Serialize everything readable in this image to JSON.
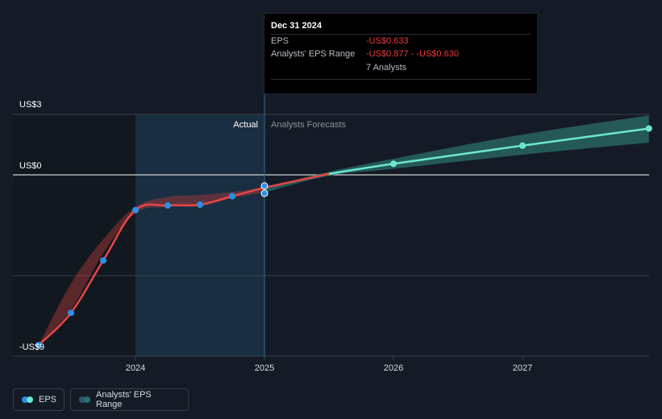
{
  "chart_data": {
    "type": "line",
    "title": "",
    "xlabel": "",
    "ylabel": "",
    "y_tick_labels": {
      "top": "US$3",
      "zero": "US$0",
      "bottom": "-US$9"
    },
    "x_ticks": [
      2024,
      2025,
      2026,
      2027
    ],
    "xlim": [
      2023.12,
      2027.98
    ],
    "ylim": [
      -9.6,
      3.0
    ],
    "divider_year": 2025.0,
    "highlight_start_year": 2024.0,
    "region_labels": {
      "actual": "Actual",
      "forecast": "Analysts Forecasts"
    },
    "series": [
      {
        "name": "EPS",
        "kind": "actual",
        "color": "#e84545",
        "x": [
          2023.25,
          2023.5,
          2023.75,
          2024.0,
          2024.25,
          2024.5,
          2024.75,
          2025.0
        ],
        "values": [
          -8.45,
          -6.85,
          -4.25,
          -1.75,
          -1.52,
          -1.48,
          -1.06,
          -0.633
        ]
      },
      {
        "name": "EPS",
        "kind": "forecast",
        "color": "#6ee6cf",
        "x": [
          2025.0,
          2025.5,
          2026.0,
          2027.0,
          2027.98
        ],
        "values": [
          -0.633,
          0.05,
          0.55,
          1.45,
          2.3
        ],
        "markers": [
          false,
          false,
          true,
          true,
          true
        ]
      },
      {
        "name": "Analysts' EPS Range",
        "kind": "range",
        "x": [
          2025.0,
          2025.5,
          2026.0,
          2027.0,
          2027.98
        ],
        "low": [
          -0.877,
          -0.05,
          0.3,
          1.0,
          1.6
        ],
        "high": [
          -0.63,
          0.15,
          0.8,
          2.0,
          2.95
        ]
      }
    ],
    "past_range": {
      "x": [
        2023.25,
        2023.5,
        2023.75,
        2024.0,
        2024.25,
        2024.5,
        2024.75,
        2025.0
      ],
      "low": [
        -8.45,
        -6.7,
        -3.9,
        -1.9,
        -1.6,
        -1.55,
        -1.15,
        -0.877
      ],
      "high": [
        -8.45,
        -5.4,
        -3.2,
        -1.6,
        -1.1,
        -1.0,
        -0.85,
        -0.63
      ]
    }
  },
  "tooltip": {
    "date": "Dec 31 2024",
    "eps_label": "EPS",
    "eps_value": "-US$0.633",
    "range_label": "Analysts' EPS Range",
    "range_value": "-US$0.877 - -US$0.630",
    "analysts_count": "7 Analysts"
  },
  "legend": {
    "eps_label": "EPS",
    "range_label": "Analysts' EPS Range"
  },
  "colors": {
    "background": "#151b26",
    "actual_line": "#e84545",
    "forecast_line": "#6ee6cf",
    "forecast_band": "#2a6f69",
    "marker_blue": "#2e8fe6",
    "highlight": "#1a3347",
    "grid": "#39404c"
  }
}
